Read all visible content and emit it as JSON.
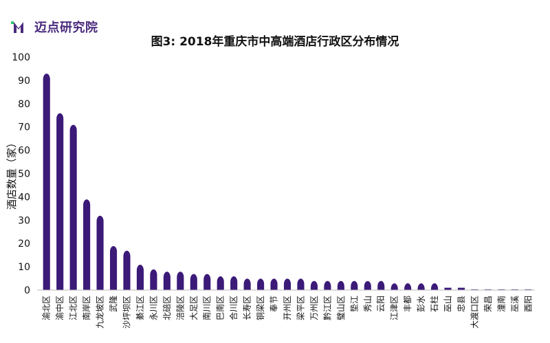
{
  "brand": {
    "name": "迈点研究院",
    "logo_mark": "M",
    "logo_color": "#4a2a7e",
    "accent_color": "#2ecc71"
  },
  "chart_data": {
    "type": "bar",
    "title": "图3: 2018年重庆市中高端酒店行政区分布情况",
    "xlabel": "",
    "ylabel": "酒店数量（家）",
    "ylim": [
      0,
      100
    ],
    "yticks": [
      0,
      10,
      20,
      30,
      40,
      50,
      60,
      70,
      80,
      90,
      100
    ],
    "grid": false,
    "bar_color": "#3b1a78",
    "categories": [
      "渝北区",
      "渝中区",
      "江北区",
      "南岸区",
      "九龙坡区",
      "武隆",
      "沙坪坝区",
      "綦江区",
      "永川区",
      "北碚区",
      "涪陵区",
      "大足区",
      "南川区",
      "巴南区",
      "合川区",
      "长寿区",
      "铜梁区",
      "奉节",
      "开州区",
      "梁平区",
      "万州区",
      "黔江区",
      "璧山区",
      "垫江",
      "秀山",
      "云阳",
      "江津区",
      "丰都",
      "彭水",
      "石柱",
      "巫山",
      "忠县",
      "大渡口区",
      "荣昌",
      "潼南",
      "巫溪",
      "酉阳"
    ],
    "values": [
      92,
      75,
      70,
      38,
      31,
      18,
      16,
      10,
      8,
      7,
      7,
      6,
      6,
      5,
      5,
      4,
      4,
      4,
      4,
      4,
      3,
      3,
      3,
      3,
      3,
      3,
      2,
      2,
      2,
      2,
      1,
      1,
      0,
      0,
      0,
      0,
      0
    ]
  }
}
